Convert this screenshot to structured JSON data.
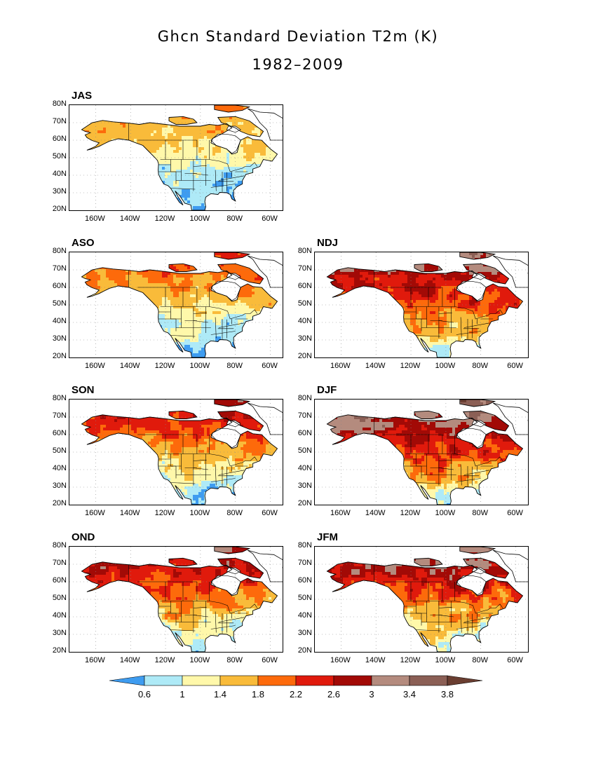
{
  "title": "Ghcn Standard Deviation T2m (K)",
  "subtitle": "1982–2009",
  "latitude_labels": [
    "80N",
    "70N",
    "60N",
    "50N",
    "40N",
    "30N",
    "20N"
  ],
  "longitude_labels": [
    "160W",
    "140W",
    "120W",
    "100W",
    "80W",
    "60W"
  ],
  "panels": [
    {
      "season": "JAS",
      "position": "left",
      "dominant_range": "0.6-1.4",
      "arctic_range": "1.4-2.2"
    },
    {
      "season": "ASO",
      "position": "left",
      "dominant_range": "0.6-1.4",
      "arctic_range": "1.8-2.2"
    },
    {
      "season": "NDJ",
      "position": "right",
      "dominant_range": "1.8-2.6",
      "arctic_range": "2.6-3.8"
    },
    {
      "season": "SON",
      "position": "left",
      "dominant_range": "1-1.8",
      "arctic_range": "1.8-3.4"
    },
    {
      "season": "DJF",
      "position": "right",
      "dominant_range": "1.8-2.6",
      "arctic_range": "2.6-3.8"
    },
    {
      "season": "OND",
      "position": "left",
      "dominant_range": "1-2.2",
      "arctic_range": "2.2-3.4"
    },
    {
      "season": "JFM",
      "position": "right",
      "dominant_range": "1.4-2.6",
      "arctic_range": "2.6-3.8"
    }
  ],
  "colorbar": {
    "labels": [
      "0.6",
      "1",
      "1.4",
      "1.8",
      "2.2",
      "2.6",
      "3",
      "3.4",
      "3.8"
    ],
    "colors": [
      "#3e9cf0",
      "#aeeaf7",
      "#fff8aa",
      "#f9bb3a",
      "#fd6a0b",
      "#e01a0c",
      "#a20a06",
      "#b48b7e",
      "#8b5f55",
      "#6a3e31"
    ]
  },
  "palette": {
    "ocean": "#ffffff",
    "ice": "#ffffff",
    "coast": "#000000"
  }
}
